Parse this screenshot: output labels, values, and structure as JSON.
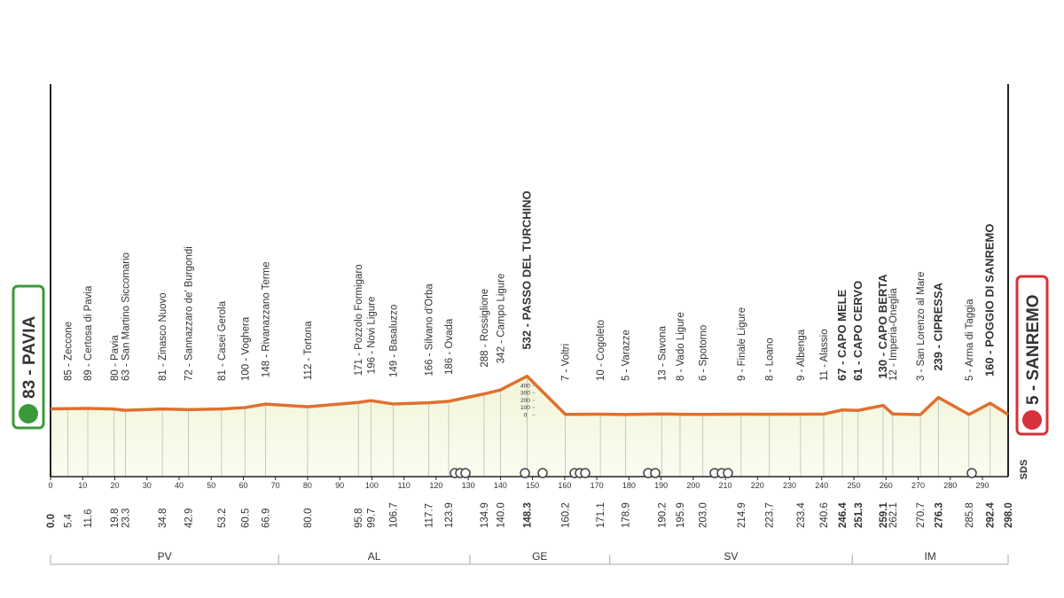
{
  "chart_data": {
    "type": "elevation-profile",
    "xlim": [
      0,
      298
    ],
    "ylim": [
      -850,
      4550
    ],
    "xticks": [
      0,
      10,
      20,
      30,
      40,
      50,
      60,
      70,
      80,
      90,
      100,
      110,
      120,
      130,
      140,
      150,
      160,
      170,
      180,
      190,
      200,
      210,
      220,
      230,
      240,
      250,
      260,
      270,
      280,
      290
    ],
    "yticks": [
      0,
      100,
      200,
      300,
      400
    ],
    "color": "#e0702f",
    "start": {
      "km": 0,
      "km_label": "0.0",
      "altitude": 83,
      "label": "83 - PAVIA",
      "color": "#3a9a3a"
    },
    "finish": {
      "km": 298,
      "km_label": "298.0",
      "altitude": 5,
      "label": "5 - SANREMO",
      "color": "#d6323a"
    },
    "waypoints": [
      {
        "km": 5.4,
        "km_label": "5.4",
        "altitude": 85,
        "label": "85 - Zeccone"
      },
      {
        "km": 11.6,
        "km_label": "11.6",
        "altitude": 89,
        "label": "89 - Certosa di Pavia"
      },
      {
        "km": 19.8,
        "km_label": "19.8",
        "altitude": 80,
        "label": "80 - Pavia"
      },
      {
        "km": 23.3,
        "km_label": "23.3",
        "altitude": 63,
        "label": "63 - San Martino Siccomario"
      },
      {
        "km": 34.8,
        "km_label": "34.8",
        "altitude": 81,
        "label": "81 - Zinasco Nuovo"
      },
      {
        "km": 42.9,
        "km_label": "42.9",
        "altitude": 72,
        "label": "72 - Sannazzaro de' Burgondi"
      },
      {
        "km": 53.2,
        "km_label": "53.2",
        "altitude": 81,
        "label": "81 - Casei Gerola"
      },
      {
        "km": 60.5,
        "km_label": "60.5",
        "altitude": 100,
        "label": "100 - Voghera"
      },
      {
        "km": 66.9,
        "km_label": "66.9",
        "altitude": 148,
        "label": "148 - Rivanazzano Terme"
      },
      {
        "km": 80.0,
        "km_label": "80.0",
        "altitude": 112,
        "label": "112 - Tortona"
      },
      {
        "km": 95.8,
        "km_label": "95.8",
        "altitude": 171,
        "label": "171 - Pozzolo Formigaro"
      },
      {
        "km": 99.7,
        "km_label": "99.7",
        "altitude": 196,
        "label": "196 - Novi Ligure"
      },
      {
        "km": 106.7,
        "km_label": "106.7",
        "altitude": 149,
        "label": "149 - Basaluzzo"
      },
      {
        "km": 117.7,
        "km_label": "117.7",
        "altitude": 166,
        "label": "166 - Silvano d'Orba"
      },
      {
        "km": 123.9,
        "km_label": "123.9",
        "altitude": 186,
        "label": "186 - Ovada"
      },
      {
        "km": 134.9,
        "km_label": "134.9",
        "altitude": 288,
        "label": "288 - Rossiglione"
      },
      {
        "km": 140.0,
        "km_label": "140.0",
        "altitude": 342,
        "label": "342 - Campo Ligure"
      },
      {
        "km": 148.3,
        "km_label": "148.3",
        "altitude": 532,
        "label": "532 - PASSO DEL TURCHINO",
        "climb": true
      },
      {
        "km": 160.2,
        "km_label": "160.2",
        "altitude": 7,
        "label": "7 - Voltri"
      },
      {
        "km": 171.1,
        "km_label": "171.1",
        "altitude": 10,
        "label": "10 - Cogoleto"
      },
      {
        "km": 178.9,
        "km_label": "178.9",
        "altitude": 5,
        "label": "5 - Varazze"
      },
      {
        "km": 190.2,
        "km_label": "190.2",
        "altitude": 13,
        "label": "13 - Savona"
      },
      {
        "km": 195.9,
        "km_label": "195.9",
        "altitude": 8,
        "label": "8 - Vado Ligure"
      },
      {
        "km": 203.0,
        "km_label": "203.0",
        "altitude": 6,
        "label": "6 - Spotorno"
      },
      {
        "km": 214.9,
        "km_label": "214.9",
        "altitude": 9,
        "label": "9 - Finale Ligure"
      },
      {
        "km": 223.7,
        "km_label": "223.7",
        "altitude": 8,
        "label": "8 - Loano"
      },
      {
        "km": 233.4,
        "km_label": "233.4",
        "altitude": 9,
        "label": "9 - Albenga"
      },
      {
        "km": 240.6,
        "km_label": "240.6",
        "altitude": 11,
        "label": "11 - Alassio"
      },
      {
        "km": 246.4,
        "km_label": "246.4",
        "altitude": 67,
        "label": "67 - CAPO MELE",
        "climb": true
      },
      {
        "km": 251.3,
        "km_label": "251.3",
        "altitude": 61,
        "label": "61 - CAPO CERVO",
        "climb": true
      },
      {
        "km": 259.1,
        "km_label": "259.1",
        "altitude": 130,
        "label": "130 - CAPO BERTA",
        "climb": true
      },
      {
        "km": 262.1,
        "km_label": "262.1",
        "altitude": 12,
        "label": "12 - Imperia-Oneglia"
      },
      {
        "km": 270.7,
        "km_label": "270.7",
        "altitude": 3,
        "label": "3 - San Lorenzo al Mare"
      },
      {
        "km": 276.3,
        "km_label": "276.3",
        "altitude": 239,
        "label": "239 - CIPRESSA",
        "climb": true
      },
      {
        "km": 285.8,
        "km_label": "285.8",
        "altitude": 5,
        "label": "5 - Arma di Taggia"
      },
      {
        "km": 292.4,
        "km_label": "292.4",
        "altitude": 160,
        "label": "160 - POGGIO DI SANREMO",
        "climb": true
      }
    ],
    "regions": [
      {
        "name": "PV",
        "start": 0,
        "end": 71
      },
      {
        "name": "AL",
        "start": 71,
        "end": 130.5
      },
      {
        "name": "GE",
        "start": 130.5,
        "end": 174
      },
      {
        "name": "SV",
        "start": 174,
        "end": 249.5
      },
      {
        "name": "IM",
        "start": 249.5,
        "end": 298
      }
    ],
    "logo": "SDS"
  }
}
